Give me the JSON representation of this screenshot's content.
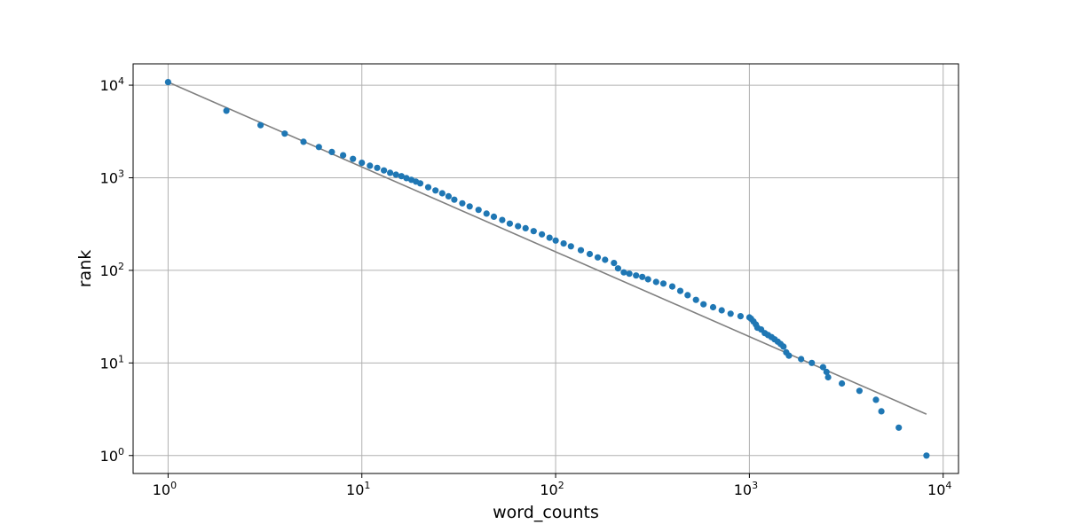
{
  "chart_data": {
    "type": "scatter",
    "xlabel": "word_counts",
    "ylabel": "rank",
    "xscale": "log",
    "yscale": "log",
    "xlim": [
      0.66,
      12000
    ],
    "ylim": [
      0.64,
      17000
    ],
    "grid": true,
    "x_ticks": [
      {
        "base": "10",
        "exp": "0",
        "value": 1
      },
      {
        "base": "10",
        "exp": "1",
        "value": 10
      },
      {
        "base": "10",
        "exp": "2",
        "value": 100
      },
      {
        "base": "10",
        "exp": "3",
        "value": 1000
      },
      {
        "base": "10",
        "exp": "4",
        "value": 10000
      }
    ],
    "y_ticks": [
      {
        "base": "10",
        "exp": "0",
        "value": 1
      },
      {
        "base": "10",
        "exp": "1",
        "value": 10
      },
      {
        "base": "10",
        "exp": "2",
        "value": 100
      },
      {
        "base": "10",
        "exp": "3",
        "value": 1000
      },
      {
        "base": "10",
        "exp": "4",
        "value": 10000
      }
    ],
    "colors": {
      "points": "#1f77b4",
      "fit_line": "#808080",
      "grid": "#b0b0b0",
      "axes": "#000000"
    },
    "series": [
      {
        "kind": "points",
        "x": [
          1,
          2,
          3,
          4,
          5,
          6,
          7,
          8,
          9,
          10,
          11,
          12,
          13,
          14,
          15,
          16,
          17,
          18,
          19,
          20,
          22,
          24,
          26,
          28,
          30,
          33,
          36,
          40,
          44,
          48,
          53,
          58,
          64,
          70,
          77,
          85,
          93,
          100,
          110,
          120,
          135,
          150,
          165,
          180,
          200,
          210,
          225,
          240,
          260,
          280,
          300,
          330,
          360,
          400,
          440,
          480,
          530,
          580,
          650,
          720,
          800,
          900,
          1000,
          1020,
          1050,
          1080,
          1100,
          1150,
          1200,
          1250,
          1300,
          1350,
          1400,
          1450,
          1500,
          1550,
          1600,
          1850,
          2100,
          2400,
          2500,
          2550,
          3000,
          3700,
          4500,
          4800,
          5900,
          8200
        ],
        "y": [
          10800,
          5300,
          3700,
          3000,
          2450,
          2150,
          1900,
          1750,
          1600,
          1450,
          1350,
          1280,
          1200,
          1130,
          1080,
          1040,
          990,
          950,
          910,
          870,
          790,
          730,
          680,
          630,
          580,
          530,
          490,
          450,
          410,
          380,
          350,
          320,
          300,
          285,
          265,
          245,
          225,
          210,
          195,
          182,
          165,
          150,
          138,
          130,
          120,
          105,
          95,
          92,
          88,
          85,
          80,
          75,
          72,
          67,
          60,
          54,
          48,
          43,
          40,
          37,
          34,
          32,
          31,
          30,
          28,
          26,
          24,
          23,
          21,
          20,
          19,
          18,
          17,
          16,
          15,
          13,
          12,
          11,
          10,
          9,
          8,
          7,
          6,
          5,
          4,
          3,
          2,
          1
        ]
      },
      {
        "kind": "fit_line",
        "x": [
          1,
          8200
        ],
        "y": [
          10800,
          2.8
        ]
      }
    ]
  }
}
